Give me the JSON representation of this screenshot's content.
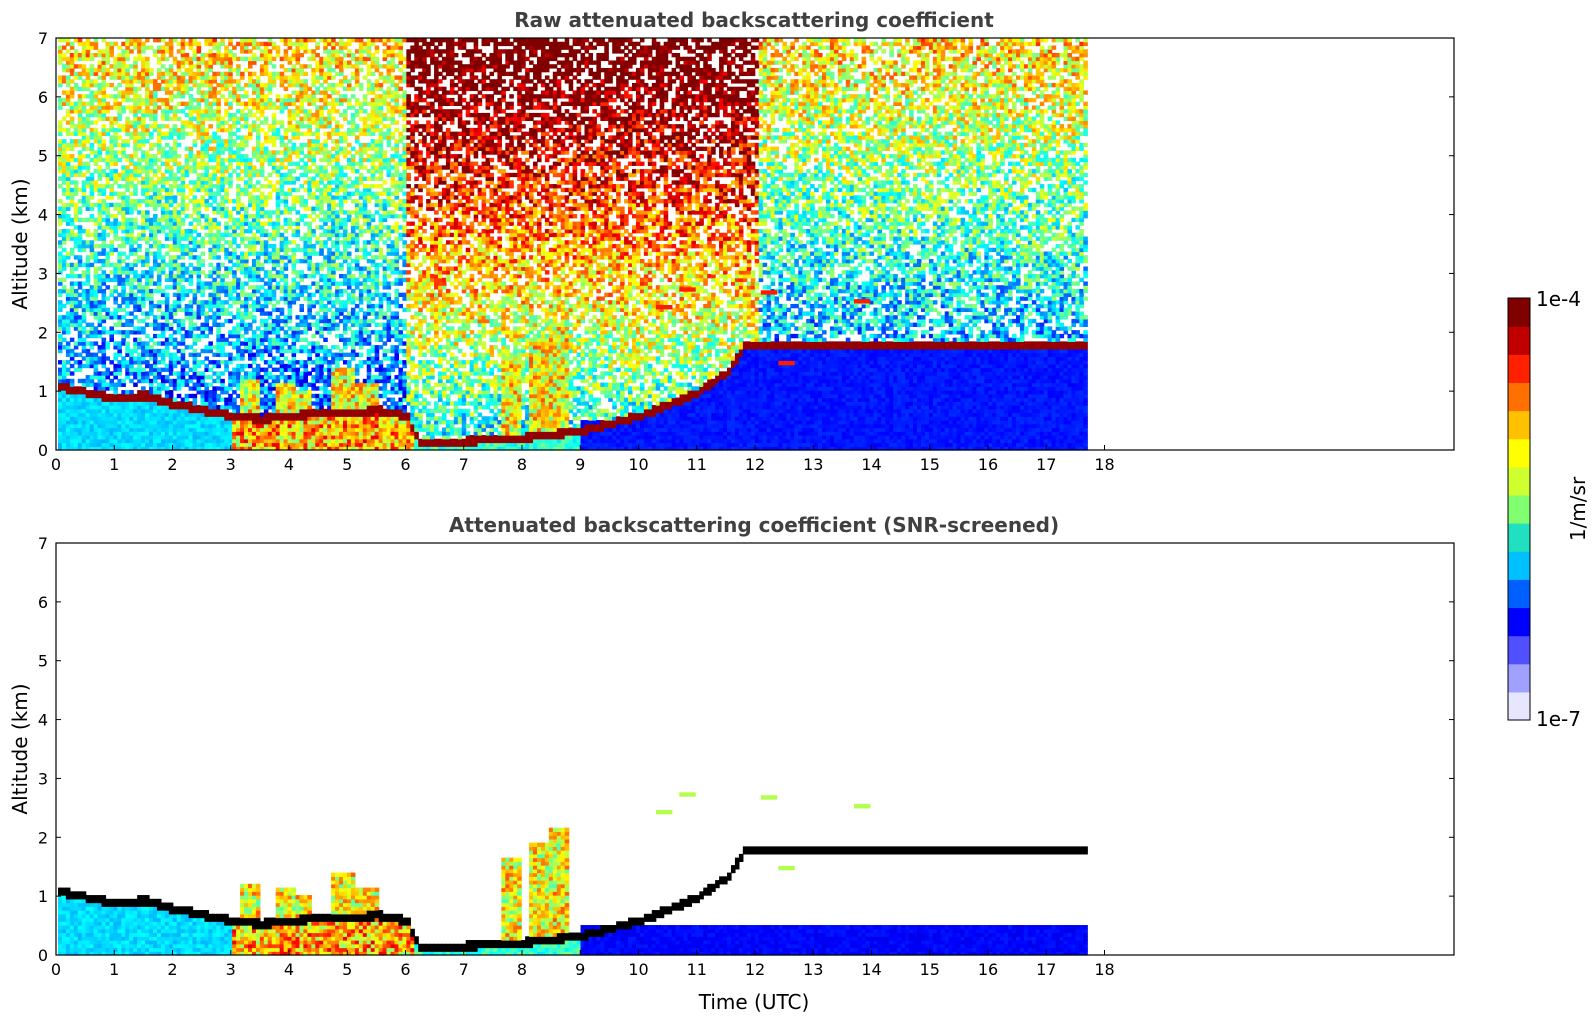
{
  "chart_data": [
    {
      "type": "heatmap",
      "title": "Raw attenuated backscattering coefficient",
      "xlabel": "",
      "ylabel": "Altitude (km)",
      "xlim": [
        0,
        24
      ],
      "ylim": [
        0,
        7
      ],
      "xticks": [
        "0",
        "1",
        "2",
        "3",
        "4",
        "5",
        "6",
        "7",
        "8",
        "9",
        "10",
        "11",
        "12",
        "13",
        "14",
        "15",
        "16",
        "17",
        "18"
      ],
      "yticks": [
        "0",
        "1",
        "2",
        "3",
        "4",
        "5",
        "6",
        "7"
      ],
      "data_end_time": 17.67,
      "screened": false,
      "cloud_layer": [
        [
          0.0,
          1.05
        ],
        [
          0.5,
          0.95
        ],
        [
          1.0,
          0.85
        ],
        [
          1.5,
          0.9
        ],
        [
          2.0,
          0.75
        ],
        [
          2.5,
          0.65
        ],
        [
          3.0,
          0.55
        ],
        [
          3.5,
          0.5
        ],
        [
          4.0,
          0.55
        ],
        [
          4.5,
          0.6
        ],
        [
          5.0,
          0.6
        ],
        [
          5.5,
          0.65
        ],
        [
          6.0,
          0.55
        ],
        [
          6.2,
          0.12
        ],
        [
          7.0,
          0.12
        ],
        [
          8.0,
          0.18
        ],
        [
          9.0,
          0.3
        ],
        [
          10.0,
          0.55
        ],
        [
          11.0,
          0.95
        ],
        [
          11.5,
          1.3
        ],
        [
          11.8,
          1.75
        ]
      ],
      "aerosol_plumes": [
        [
          3.3,
          1.2
        ],
        [
          3.9,
          1.1
        ],
        [
          4.2,
          1.0
        ],
        [
          4.9,
          1.4
        ],
        [
          5.3,
          1.1
        ],
        [
          7.8,
          1.6
        ],
        [
          8.3,
          1.9
        ],
        [
          8.6,
          2.1
        ]
      ],
      "upper_features": [
        [
          10.3,
          2.4
        ],
        [
          10.7,
          2.7
        ],
        [
          12.1,
          2.65
        ],
        [
          12.4,
          1.45
        ],
        [
          13.7,
          2.5
        ]
      ]
    },
    {
      "type": "heatmap",
      "title": "Attenuated backscattering coefficient (SNR-screened)",
      "xlabel": "Time (UTC)",
      "ylabel": "Altitude (km)",
      "xlim": [
        0,
        24
      ],
      "ylim": [
        0,
        7
      ],
      "xticks": [
        "0",
        "1",
        "2",
        "3",
        "4",
        "5",
        "6",
        "7",
        "8",
        "9",
        "10",
        "11",
        "12",
        "13",
        "14",
        "15",
        "16",
        "17",
        "18"
      ],
      "yticks": [
        "0",
        "1",
        "2",
        "3",
        "4",
        "5",
        "6",
        "7"
      ],
      "data_end_time": 17.67,
      "screened": true,
      "cloud_layer": [
        [
          0.0,
          1.05
        ],
        [
          0.5,
          0.95
        ],
        [
          1.0,
          0.85
        ],
        [
          1.5,
          0.9
        ],
        [
          2.0,
          0.75
        ],
        [
          2.5,
          0.65
        ],
        [
          3.0,
          0.55
        ],
        [
          3.5,
          0.5
        ],
        [
          4.0,
          0.55
        ],
        [
          4.5,
          0.6
        ],
        [
          5.0,
          0.6
        ],
        [
          5.5,
          0.65
        ],
        [
          6.0,
          0.55
        ],
        [
          6.2,
          0.12
        ],
        [
          7.0,
          0.12
        ],
        [
          8.0,
          0.18
        ],
        [
          9.0,
          0.3
        ],
        [
          10.0,
          0.55
        ],
        [
          11.0,
          0.95
        ],
        [
          11.5,
          1.3
        ],
        [
          11.8,
          1.75
        ]
      ],
      "aerosol_plumes": [
        [
          3.3,
          1.2
        ],
        [
          3.9,
          1.1
        ],
        [
          4.2,
          1.0
        ],
        [
          4.9,
          1.4
        ],
        [
          5.3,
          1.1
        ],
        [
          7.8,
          1.6
        ],
        [
          8.3,
          1.9
        ],
        [
          8.6,
          2.1
        ]
      ],
      "upper_features": [
        [
          10.3,
          2.4
        ],
        [
          10.7,
          2.7
        ],
        [
          12.1,
          2.65
        ],
        [
          12.4,
          1.45
        ],
        [
          13.7,
          2.5
        ]
      ]
    }
  ],
  "colorbar": {
    "label": "1/m/sr",
    "max_label": "1e-4",
    "min_label": "1e-7",
    "scale": "log",
    "range": [
      1e-07,
      0.0001
    ],
    "colors": [
      "#e6e6ff",
      "#a0a0ff",
      "#5050ff",
      "#0000ff",
      "#0060ff",
      "#00c0ff",
      "#20e0c0",
      "#80ff70",
      "#d0ff30",
      "#ffff00",
      "#ffc000",
      "#ff7000",
      "#ff2000",
      "#c00000",
      "#800000"
    ]
  }
}
